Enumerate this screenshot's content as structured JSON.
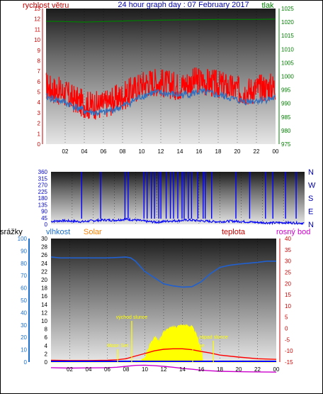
{
  "header": {
    "title": "24 hour graph day : 07 February 2017",
    "wind_label": "rychlost větru",
    "pressure_label": "tlak"
  },
  "labels": {
    "rain": "srážky",
    "humidity": "vlhkost",
    "solar": "Solar",
    "temperature": "teplota",
    "dewpoint": "rosný bod",
    "sunrise": "východ slunce",
    "sunset": "západ slunce",
    "moonset": "Moon Set",
    "moonrise": "Moon Rise"
  },
  "colors": {
    "wind": "#ff0000",
    "gust_avg": "#3070c0",
    "pressure": "#008000",
    "direction": "#0000ff",
    "humidity": "#2060d0",
    "temperature": "#ff0000",
    "dewpoint": "#cc00cc",
    "solar": "#ffff00",
    "rain": "#0000ff",
    "title": "#0000aa",
    "annotation": "#ffff00"
  },
  "chart_data": [
    {
      "type": "line",
      "name": "wind-pressure",
      "x_ticks": [
        "02",
        "04",
        "06",
        "08",
        "10",
        "12",
        "14",
        "16",
        "18",
        "20",
        "22",
        "00"
      ],
      "left_axis": {
        "ticks": [
          "0",
          "1",
          "2",
          "3",
          "4",
          "5",
          "6",
          "7",
          "8",
          "9",
          "10",
          "11",
          "12",
          "13"
        ],
        "ylim": [
          0,
          13
        ]
      },
      "right_axis": {
        "ticks": [
          "975",
          "980",
          "985",
          "990",
          "995",
          "1000",
          "1005",
          "1010",
          "1015",
          "1020",
          "1025"
        ],
        "ylim": [
          975,
          1025
        ]
      },
      "series": [
        {
          "key": "wind",
          "x": [
            0,
            0.5,
            1,
            1.5,
            2,
            2.5,
            3,
            3.5,
            4,
            4.5,
            5,
            5.5,
            6,
            6.5,
            7,
            7.5,
            8,
            8.5,
            9,
            9.5,
            10,
            10.5,
            11,
            11.5,
            12,
            12.5,
            13,
            13.5,
            14,
            14.5,
            15,
            15.5,
            16,
            16.5,
            17,
            17.5,
            18,
            18.5,
            19,
            19.5,
            20,
            20.5,
            21,
            21.5,
            22,
            22.5,
            23,
            23.5,
            24
          ],
          "values": [
            5.6,
            5.3,
            5.2,
            5.0,
            4.9,
            4.5,
            4.3,
            4.0,
            3.9,
            3.7,
            3.8,
            3.7,
            3.8,
            4.0,
            4.2,
            4.4,
            4.6,
            4.8,
            5.2,
            5.4,
            5.7,
            5.9,
            6.0,
            6.0,
            5.9,
            5.8,
            5.7,
            5.6,
            5.6,
            5.7,
            5.9,
            6.0,
            6.1,
            6.0,
            5.9,
            5.8,
            5.7,
            5.6,
            5.5,
            5.3,
            5.2,
            5.1,
            5.1,
            5.2,
            5.3,
            5.4,
            5.4,
            5.5,
            5.5
          ]
        },
        {
          "key": "gust_avg",
          "x": [
            0,
            1,
            2,
            3,
            4,
            5,
            6,
            7,
            8,
            9,
            10,
            11,
            12,
            13,
            14,
            15,
            16,
            17,
            18,
            19,
            20,
            21,
            22,
            23,
            24
          ],
          "values": [
            4.5,
            4.3,
            4.0,
            3.6,
            3.2,
            3.0,
            3.0,
            3.3,
            3.6,
            4.1,
            4.6,
            4.9,
            4.9,
            4.8,
            4.7,
            4.8,
            5.0,
            4.9,
            4.7,
            4.5,
            4.2,
            4.1,
            4.2,
            4.3,
            4.4
          ]
        },
        {
          "key": "pressure",
          "axis": "right",
          "x": [
            0,
            2,
            4,
            6,
            8,
            10,
            12,
            14,
            16,
            18,
            20,
            22,
            24
          ],
          "values": [
            1020.3,
            1020.2,
            1020.0,
            1020.2,
            1020.4,
            1020.6,
            1020.7,
            1020.8,
            1020.9,
            1021.0,
            1021.0,
            1021.0,
            1021.1
          ]
        }
      ]
    },
    {
      "type": "line",
      "name": "wind-direction",
      "x_ticks": [
        "02",
        "04",
        "06",
        "08",
        "10",
        "12",
        "14",
        "16",
        "18",
        "20",
        "22",
        "00"
      ],
      "left_axis": {
        "ticks": [
          "0",
          "45",
          "90",
          "135",
          "180",
          "225",
          "270",
          "315",
          "360"
        ],
        "ylim": [
          0,
          360
        ]
      },
      "right_axis": {
        "ticks": [
          "N",
          "W",
          "S",
          "E",
          "N"
        ]
      },
      "series": [
        {
          "key": "direction",
          "x": [
            0,
            1,
            2,
            3,
            4,
            5,
            6,
            7,
            8,
            9,
            10,
            11,
            12,
            13,
            14,
            15,
            16,
            17,
            18,
            19,
            20,
            21,
            22,
            23,
            24
          ],
          "values": [
            20,
            25,
            22,
            18,
            25,
            30,
            28,
            35,
            30,
            20,
            15,
            22,
            25,
            30,
            25,
            20,
            18,
            22,
            20,
            15,
            12,
            10,
            12,
            10,
            8
          ]
        }
      ]
    },
    {
      "type": "line",
      "name": "humidity-temperature",
      "x_ticks": [
        "02",
        "04",
        "06",
        "08",
        "10",
        "12",
        "14",
        "16",
        "18",
        "20",
        "22",
        "00"
      ],
      "rain_axis": {
        "ticks": [
          "0",
          "10",
          "20",
          "30",
          "40",
          "50",
          "60",
          "70",
          "80",
          "90",
          "100"
        ],
        "ylim": [
          0,
          100
        ]
      },
      "humidity_axis": {
        "ticks": [
          "0",
          "2",
          "4",
          "6",
          "8",
          "10",
          "12",
          "14",
          "16",
          "18",
          "20",
          "22",
          "24",
          "26",
          "28",
          "30"
        ],
        "ylim": [
          0,
          30
        ]
      },
      "temperature_axis": {
        "ticks": [
          "-15",
          "-10",
          "-5",
          "0",
          "5",
          "10",
          "15",
          "20",
          "25",
          "30",
          "35",
          "40"
        ],
        "ylim": [
          -15,
          40
        ]
      },
      "series": [
        {
          "key": "humidity",
          "axis": "humidity",
          "x": [
            0,
            1,
            2,
            3,
            4,
            5,
            6,
            7,
            8,
            8.5,
            9,
            10,
            11,
            12,
            13,
            14,
            15,
            16,
            17,
            18,
            19,
            20,
            21,
            22,
            23,
            24
          ],
          "values": [
            25.5,
            25.3,
            25.3,
            25.3,
            25.3,
            25.3,
            25.3,
            25.4,
            25.5,
            25.3,
            24.5,
            22.0,
            20.5,
            19.0,
            18.5,
            18.2,
            18.3,
            19.5,
            21.5,
            23.0,
            23.5,
            23.8,
            24.0,
            24.2,
            24.5,
            24.5
          ]
        },
        {
          "key": "temperature",
          "axis": "temperature",
          "x": [
            0,
            2,
            4,
            6,
            7,
            8,
            9,
            10,
            11,
            12,
            13,
            14,
            15,
            16,
            17,
            18,
            20,
            22,
            24
          ],
          "values": [
            -14.2,
            -14.3,
            -14.3,
            -14.2,
            -14.0,
            -13.5,
            -12.3,
            -11.2,
            -10.0,
            -9.3,
            -9.1,
            -9.1,
            -9.5,
            -10.3,
            -11.0,
            -11.9,
            -12.8,
            -13.5,
            -13.8
          ]
        },
        {
          "key": "dewpoint",
          "axis": "temperature",
          "x": [
            0,
            2,
            4,
            6,
            7,
            8,
            9,
            10,
            11,
            12,
            13,
            14,
            15,
            16,
            17,
            18,
            20,
            22,
            24
          ],
          "values": [
            -17.5,
            -17.7,
            -17.6,
            -17.5,
            -17.3,
            -16.9,
            -16.5,
            -16.4,
            -16.6,
            -16.9,
            -17.3,
            -17.8,
            -18.2,
            -18.6,
            -18.9,
            -19.1,
            -19.3,
            -19.4,
            -19.5
          ]
        },
        {
          "key": "solar",
          "axis": "humidity",
          "x": [
            0,
            7,
            8,
            9,
            9.5,
            10,
            10.5,
            11,
            11.5,
            12,
            12.5,
            13,
            13.5,
            14,
            14.5,
            15,
            15.5,
            16,
            16.2,
            24
          ],
          "values": [
            0,
            0,
            0,
            0,
            0.2,
            1.0,
            4.0,
            6.2,
            5.0,
            7.4,
            8.0,
            8.4,
            8.7,
            8.9,
            8.8,
            8.6,
            6.5,
            3.0,
            0,
            0
          ]
        },
        {
          "key": "rain",
          "axis": "rain",
          "x": [
            0,
            24
          ],
          "values": [
            0,
            0
          ]
        }
      ],
      "markers": [
        {
          "key": "moonset",
          "x": 7.1
        },
        {
          "key": "sunrise",
          "x": 8.6
        },
        {
          "key": "moonrise",
          "x": 15.1
        },
        {
          "key": "sunset",
          "x": 17.3
        }
      ]
    }
  ]
}
